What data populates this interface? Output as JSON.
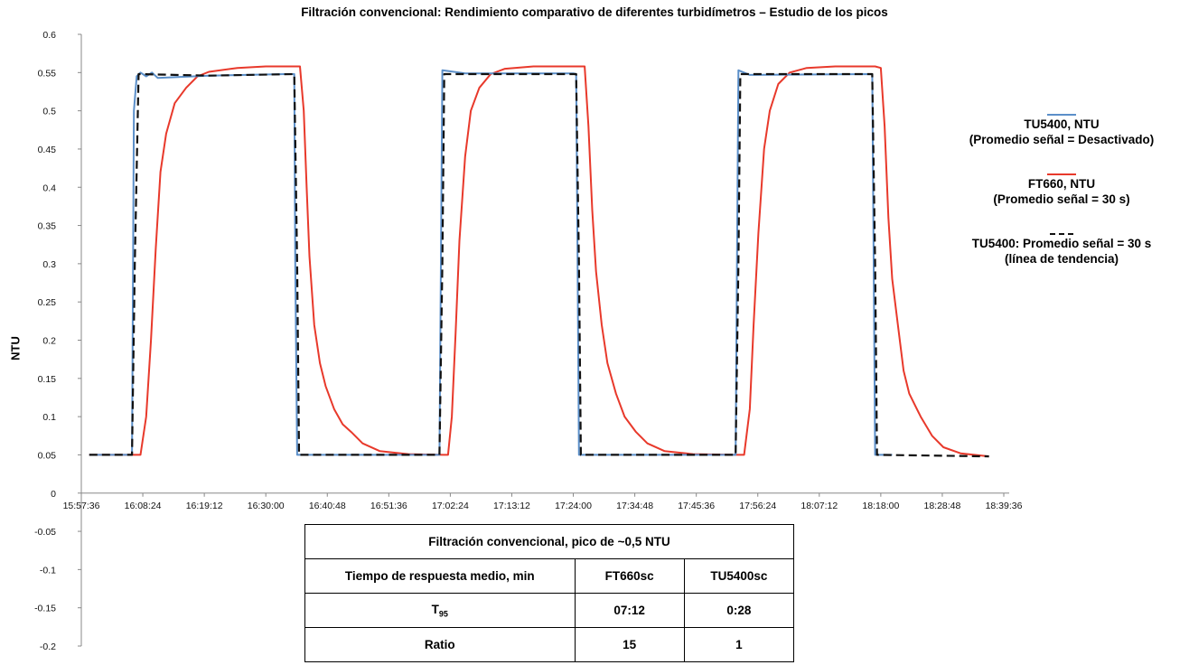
{
  "chart_data": {
    "type": "line",
    "title": "Filtración convencional: Rendimiento comparativo de diferentes turbidímetros – Estudio de los picos",
    "ylabel": "NTU",
    "xlabel": "",
    "ylim": [
      -0.2,
      0.6
    ],
    "yticks": [
      "0.6",
      "0.55",
      "0.5",
      "0.45",
      "0.4",
      "0.35",
      "0.3",
      "0.25",
      "0.2",
      "0.15",
      "0.1",
      "0.05",
      "0",
      "-0.05",
      "-0.1",
      "-0.15",
      "-0.2"
    ],
    "xlim": [
      "15:57:36",
      "18:39:36"
    ],
    "xticks": [
      "15:57:36",
      "16:08:24",
      "16:19:12",
      "16:30:00",
      "16:40:48",
      "16:51:36",
      "17:02:24",
      "17:13:12",
      "17:24:00",
      "17:34:48",
      "17:45:36",
      "17:56:24",
      "18:07:12",
      "18:18:00",
      "18:28:48",
      "18:39:36"
    ],
    "series": [
      {
        "name": "TU5400, NTU (Promedio señal = Desactivado)",
        "color": "#5b8fc9",
        "style": "solid",
        "points": [
          [
            "15:59:00",
            0.05
          ],
          [
            "16:06:30",
            0.05
          ],
          [
            "16:06:50",
            0.5
          ],
          [
            "16:07:20",
            0.545
          ],
          [
            "16:08:00",
            0.55
          ],
          [
            "16:09:00",
            0.545
          ],
          [
            "16:10:00",
            0.55
          ],
          [
            "16:11:00",
            0.543
          ],
          [
            "16:20:00",
            0.546
          ],
          [
            "16:33:30",
            0.548
          ],
          [
            "16:35:00",
            0.548
          ],
          [
            "16:35:10",
            0.3
          ],
          [
            "16:35:30",
            0.05
          ],
          [
            "16:40:00",
            0.05
          ],
          [
            "17:00:30",
            0.05
          ],
          [
            "17:00:45",
            0.3
          ],
          [
            "17:01:00",
            0.553
          ],
          [
            "17:05:00",
            0.549
          ],
          [
            "17:24:00",
            0.549
          ],
          [
            "17:24:30",
            0.548
          ],
          [
            "17:24:45",
            0.3
          ],
          [
            "17:25:00",
            0.05
          ],
          [
            "17:52:30",
            0.05
          ],
          [
            "17:52:45",
            0.3
          ],
          [
            "17:53:00",
            0.553
          ],
          [
            "17:55:00",
            0.547
          ],
          [
            "18:16:30",
            0.548
          ],
          [
            "18:16:45",
            0.3
          ],
          [
            "18:17:00",
            0.05
          ],
          [
            "18:20:00",
            0.05
          ]
        ]
      },
      {
        "name": "FT660, NTU (Promedio señal = 30 s)",
        "color": "#e8392b",
        "style": "solid",
        "points": [
          [
            "15:59:00",
            0.05
          ],
          [
            "16:08:00",
            0.05
          ],
          [
            "16:09:00",
            0.1
          ],
          [
            "16:09:50",
            0.2
          ],
          [
            "16:10:40",
            0.32
          ],
          [
            "16:11:30",
            0.42
          ],
          [
            "16:12:30",
            0.47
          ],
          [
            "16:14:00",
            0.51
          ],
          [
            "16:16:00",
            0.53
          ],
          [
            "16:18:00",
            0.545
          ],
          [
            "16:20:00",
            0.551
          ],
          [
            "16:25:00",
            0.556
          ],
          [
            "16:30:00",
            0.558
          ],
          [
            "16:35:00",
            0.558
          ],
          [
            "16:36:00",
            0.558
          ],
          [
            "16:36:40",
            0.5
          ],
          [
            "16:37:10",
            0.4
          ],
          [
            "16:37:40",
            0.31
          ],
          [
            "16:38:30",
            0.22
          ],
          [
            "16:39:30",
            0.17
          ],
          [
            "16:40:30",
            0.14
          ],
          [
            "16:42:00",
            0.11
          ],
          [
            "16:43:30",
            0.09
          ],
          [
            "16:45:00",
            0.08
          ],
          [
            "16:47:00",
            0.065
          ],
          [
            "16:50:00",
            0.055
          ],
          [
            "16:55:00",
            0.051
          ],
          [
            "17:01:00",
            0.05
          ],
          [
            "17:02:00",
            0.05
          ],
          [
            "17:02:40",
            0.1
          ],
          [
            "17:03:20",
            0.21
          ],
          [
            "17:04:00",
            0.33
          ],
          [
            "17:05:00",
            0.44
          ],
          [
            "17:06:00",
            0.5
          ],
          [
            "17:07:30",
            0.53
          ],
          [
            "17:09:30",
            0.548
          ],
          [
            "17:12:00",
            0.555
          ],
          [
            "17:17:00",
            0.558
          ],
          [
            "17:25:00",
            0.558
          ],
          [
            "17:26:00",
            0.558
          ],
          [
            "17:26:40",
            0.48
          ],
          [
            "17:27:20",
            0.37
          ],
          [
            "17:28:00",
            0.29
          ],
          [
            "17:29:00",
            0.22
          ],
          [
            "17:30:00",
            0.17
          ],
          [
            "17:31:30",
            0.13
          ],
          [
            "17:33:00",
            0.1
          ],
          [
            "17:35:00",
            0.08
          ],
          [
            "17:37:00",
            0.065
          ],
          [
            "17:40:00",
            0.055
          ],
          [
            "17:45:00",
            0.051
          ],
          [
            "17:53:00",
            0.05
          ],
          [
            "17:54:00",
            0.05
          ],
          [
            "17:55:00",
            0.11
          ],
          [
            "17:55:40",
            0.22
          ],
          [
            "17:56:30",
            0.34
          ],
          [
            "17:57:30",
            0.45
          ],
          [
            "17:58:30",
            0.5
          ],
          [
            "18:00:00",
            0.535
          ],
          [
            "18:02:00",
            0.55
          ],
          [
            "18:05:00",
            0.556
          ],
          [
            "18:10:00",
            0.558
          ],
          [
            "18:17:00",
            0.558
          ],
          [
            "18:18:00",
            0.556
          ],
          [
            "18:18:40",
            0.48
          ],
          [
            "18:19:20",
            0.36
          ],
          [
            "18:20:00",
            0.28
          ],
          [
            "18:21:00",
            0.22
          ],
          [
            "18:22:00",
            0.16
          ],
          [
            "18:23:00",
            0.13
          ],
          [
            "18:25:00",
            0.1
          ],
          [
            "18:27:00",
            0.075
          ],
          [
            "18:29:00",
            0.06
          ],
          [
            "18:32:00",
            0.052
          ],
          [
            "18:37:00",
            0.048
          ]
        ]
      },
      {
        "name": "TU5400: Promedio señal = 30 s (línea de tendencia)",
        "color": "#111111",
        "style": "dashed",
        "points": [
          [
            "15:59:00",
            0.05
          ],
          [
            "16:06:30",
            0.05
          ],
          [
            "16:07:00",
            0.3
          ],
          [
            "16:07:40",
            0.548
          ],
          [
            "16:20:00",
            0.546
          ],
          [
            "16:35:00",
            0.548
          ],
          [
            "16:35:30",
            0.3
          ],
          [
            "16:35:50",
            0.05
          ],
          [
            "17:00:30",
            0.05
          ],
          [
            "17:01:00",
            0.3
          ],
          [
            "17:01:20",
            0.548
          ],
          [
            "17:24:30",
            0.548
          ],
          [
            "17:25:00",
            0.3
          ],
          [
            "17:25:20",
            0.05
          ],
          [
            "17:52:30",
            0.05
          ],
          [
            "17:53:00",
            0.3
          ],
          [
            "17:53:20",
            0.548
          ],
          [
            "18:16:30",
            0.548
          ],
          [
            "18:17:00",
            0.3
          ],
          [
            "18:17:20",
            0.05
          ],
          [
            "18:37:00",
            0.048
          ]
        ]
      }
    ]
  },
  "legend": {
    "entries": [
      {
        "line1": "TU5400, NTU",
        "line2": "(Promedio señal = Desactivado)"
      },
      {
        "line1": "FT660, NTU",
        "line2": "(Promedio señal = 30 s)"
      },
      {
        "line1": "TU5400: Promedio señal = 30 s",
        "line2": "(línea de tendencia)"
      }
    ]
  },
  "table": {
    "title": "Filtración convencional, pico de ~0,5 NTU",
    "header": [
      "Tiempo de respuesta medio, min",
      "FT660sc",
      "TU5400sc"
    ],
    "row_t95": {
      "label_main": "T",
      "label_sub": "95",
      "ft660": "07:12",
      "tu5400": "0:28"
    },
    "row_ratio": {
      "label": "Ratio",
      "ft660": "15",
      "tu5400": "1"
    }
  }
}
